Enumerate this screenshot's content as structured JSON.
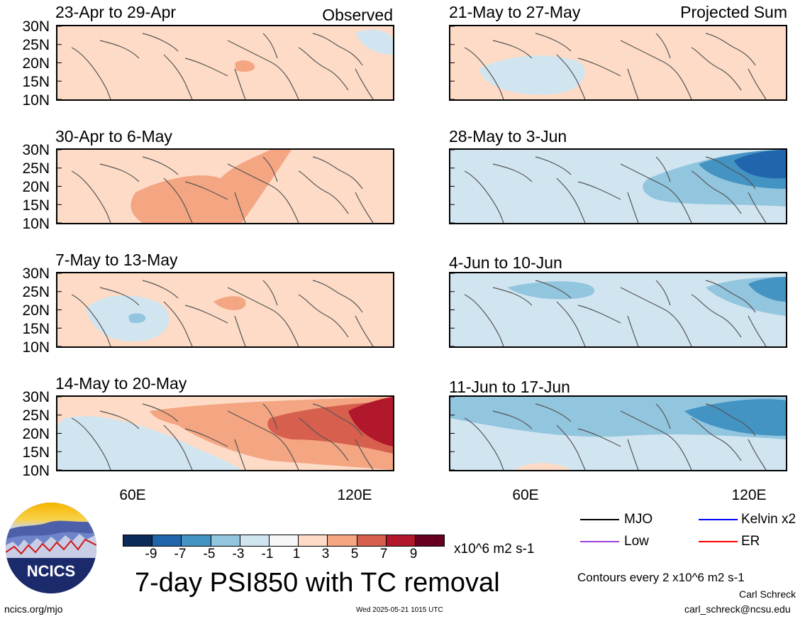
{
  "panels": [
    {
      "title": "23-Apr to 29-Apr",
      "corner": "Observed",
      "lat_labels": [
        "30N",
        "25N",
        "20N",
        "15N",
        "10N"
      ],
      "blobs": [
        {
          "cls": "p1",
          "shape": "wide"
        },
        {
          "cls": "p3",
          "shape": "spot1"
        },
        {
          "cls": "n1",
          "shape": "spotR"
        }
      ]
    },
    {
      "title": "30-Apr to 6-May",
      "corner": "",
      "lat_labels": [
        "30N",
        "25N",
        "20N",
        "15N",
        "10N"
      ],
      "blobs": [
        {
          "cls": "p1",
          "shape": "wide"
        },
        {
          "cls": "p3",
          "shape": "band1"
        }
      ]
    },
    {
      "title": "7-May to 13-May",
      "corner": "",
      "lat_labels": [
        "30N",
        "25N",
        "20N",
        "15N",
        "10N"
      ],
      "blobs": [
        {
          "cls": "p1",
          "shape": "wide"
        },
        {
          "cls": "n1",
          "shape": "west"
        },
        {
          "cls": "n3",
          "shape": "spot2"
        },
        {
          "cls": "p3",
          "shape": "spot3"
        }
      ]
    },
    {
      "title": "14-May to 20-May",
      "corner": "",
      "lat_labels": [
        "30N",
        "25N",
        "20N",
        "15N",
        "10N"
      ],
      "blobs": [
        {
          "cls": "p1",
          "shape": "wide"
        },
        {
          "cls": "p3",
          "shape": "east"
        },
        {
          "cls": "p5",
          "shape": "east2"
        },
        {
          "cls": "p7",
          "shape": "east3"
        },
        {
          "cls": "n1",
          "shape": "southwest"
        }
      ]
    },
    {
      "title": "21-May to 27-May",
      "corner": "Projected Sum",
      "lat_labels": [],
      "blobs": [
        {
          "cls": "p1",
          "shape": "wide"
        },
        {
          "cls": "n1",
          "shape": "southwestR"
        }
      ]
    },
    {
      "title": "28-May to 3-Jun",
      "corner": "",
      "lat_labels": [],
      "blobs": [
        {
          "cls": "n1",
          "shape": "full"
        },
        {
          "cls": "n3",
          "shape": "eastN"
        },
        {
          "cls": "n5",
          "shape": "eastN2"
        },
        {
          "cls": "n7",
          "shape": "eastN3"
        }
      ]
    },
    {
      "title": "4-Jun to 10-Jun",
      "corner": "",
      "lat_labels": [],
      "blobs": [
        {
          "cls": "n1",
          "shape": "full"
        },
        {
          "cls": "n3",
          "shape": "topband"
        },
        {
          "cls": "n5",
          "shape": "eastN4"
        }
      ]
    },
    {
      "title": "11-Jun to 17-Jun",
      "corner": "",
      "lat_labels": [],
      "blobs": [
        {
          "cls": "n1",
          "shape": "full"
        },
        {
          "cls": "n3",
          "shape": "topwide"
        },
        {
          "cls": "n5",
          "shape": "eastN5"
        },
        {
          "cls": "p1",
          "shape": "bottomspot"
        }
      ]
    }
  ],
  "lon_labels_left": [
    "60E",
    "120E"
  ],
  "lon_labels_right": [
    "60E",
    "120E"
  ],
  "colorbar": {
    "colors": [
      "#0b2a5a",
      "#2166ac",
      "#4393c3",
      "#92c5de",
      "#d1e5f0",
      "#f7f7f7",
      "#fddbc7",
      "#f4a582",
      "#d6604d",
      "#b2182b",
      "#67001f"
    ],
    "ticks": [
      "-9",
      "-7",
      "-5",
      "-3",
      "-1",
      "1",
      "3",
      "5",
      "7",
      "9"
    ],
    "units": "x10^6 m2 s-1"
  },
  "main_title": "7-day PSI850 with TC removal",
  "legend": [
    {
      "label": "MJO",
      "color": "#000000"
    },
    {
      "label": "Kelvin x2",
      "color": "#0000ff"
    },
    {
      "label": "Low",
      "color": "#a040e0"
    },
    {
      "label": "ER",
      "color": "#ff0000"
    }
  ],
  "contour_note": "Contours every 2 x10^6 m2 s-1",
  "author": "Carl Schreck",
  "email": "carl_schreck@ncsu.edu",
  "site": "ncics.org/mjo",
  "timestamp": "Wed 2025-05-21 1015 UTC",
  "logo_text": "NCICS",
  "fill_colors": {
    "p1": "#fddbc7",
    "p3": "#f4a582",
    "p5": "#d6604d",
    "p7": "#b2182b",
    "n1": "#d1e5f0",
    "n3": "#92c5de",
    "n5": "#4393c3",
    "n7": "#2166ac"
  }
}
